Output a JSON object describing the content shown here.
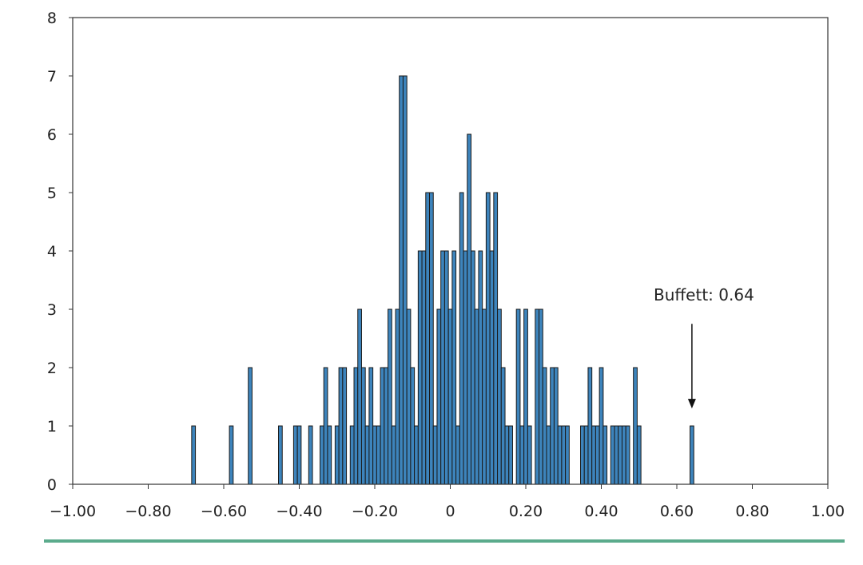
{
  "chart_data": {
    "type": "bar",
    "title": "",
    "xlabel": "",
    "ylabel": "",
    "xlim": [
      -1.0,
      1.0
    ],
    "ylim": [
      0,
      8
    ],
    "bin_width": 0.01,
    "grid": false,
    "legend": "none",
    "x_ticks": [
      "−1.00",
      "−0.80",
      "−0.60",
      "−0.40",
      "−0.20",
      "0",
      "0.20",
      "0.40",
      "0.60",
      "0.80",
      "1.00"
    ],
    "x_tick_values": [
      -1.0,
      -0.8,
      -0.6,
      -0.4,
      -0.2,
      0,
      0.2,
      0.4,
      0.6,
      0.8,
      1.0
    ],
    "y_ticks": [
      "0",
      "1",
      "2",
      "3",
      "4",
      "5",
      "6",
      "7",
      "8"
    ],
    "y_tick_values": [
      0,
      1,
      2,
      3,
      4,
      5,
      6,
      7,
      8
    ],
    "series": [
      {
        "x": [
          -0.68,
          -0.58,
          -0.53,
          -0.45,
          -0.41,
          -0.4,
          -0.37,
          -0.34,
          -0.33,
          -0.32,
          -0.3,
          -0.29,
          -0.28,
          -0.26,
          -0.25,
          -0.24,
          -0.23,
          -0.22,
          -0.21,
          -0.2,
          -0.19,
          -0.18,
          -0.17,
          -0.16,
          -0.15,
          -0.14,
          -0.13,
          -0.12,
          -0.11,
          -0.1,
          -0.09,
          -0.08,
          -0.07,
          -0.06,
          -0.05,
          -0.04,
          -0.03,
          -0.02,
          -0.01,
          0.0,
          0.01,
          0.02,
          0.03,
          0.04,
          0.05,
          0.06,
          0.07,
          0.08,
          0.09,
          0.1,
          0.11,
          0.12,
          0.13,
          0.14,
          0.15,
          0.16,
          0.18,
          0.19,
          0.2,
          0.21,
          0.23,
          0.24,
          0.25,
          0.26,
          0.27,
          0.28,
          0.29,
          0.3,
          0.31,
          0.35,
          0.36,
          0.37,
          0.38,
          0.39,
          0.4,
          0.41,
          0.43,
          0.44,
          0.45,
          0.46,
          0.47,
          0.49,
          0.5,
          0.64
        ],
        "values": [
          1,
          1,
          2,
          1,
          1,
          1,
          1,
          1,
          2,
          1,
          1,
          2,
          2,
          1,
          2,
          3,
          2,
          1,
          2,
          1,
          1,
          2,
          2,
          3,
          1,
          3,
          7,
          7,
          3,
          2,
          1,
          4,
          4,
          5,
          5,
          1,
          3,
          4,
          4,
          3,
          4,
          1,
          5,
          4,
          6,
          4,
          3,
          4,
          3,
          5,
          4,
          5,
          3,
          2,
          1,
          1,
          3,
          1,
          3,
          1,
          3,
          3,
          2,
          1,
          2,
          2,
          1,
          1,
          1,
          1,
          1,
          2,
          1,
          1,
          2,
          1,
          1,
          1,
          1,
          1,
          1,
          2,
          1,
          1
        ],
        "color": "#3d84bc"
      }
    ],
    "annotations": [
      {
        "text": "Buffett: 0.64",
        "x": 0.64
      }
    ]
  },
  "colors": {
    "bar_fill": "#3d84bc",
    "bar_stroke": "#1a1a1a",
    "axis": "#333333",
    "footer_rule": "#5bab8c"
  }
}
